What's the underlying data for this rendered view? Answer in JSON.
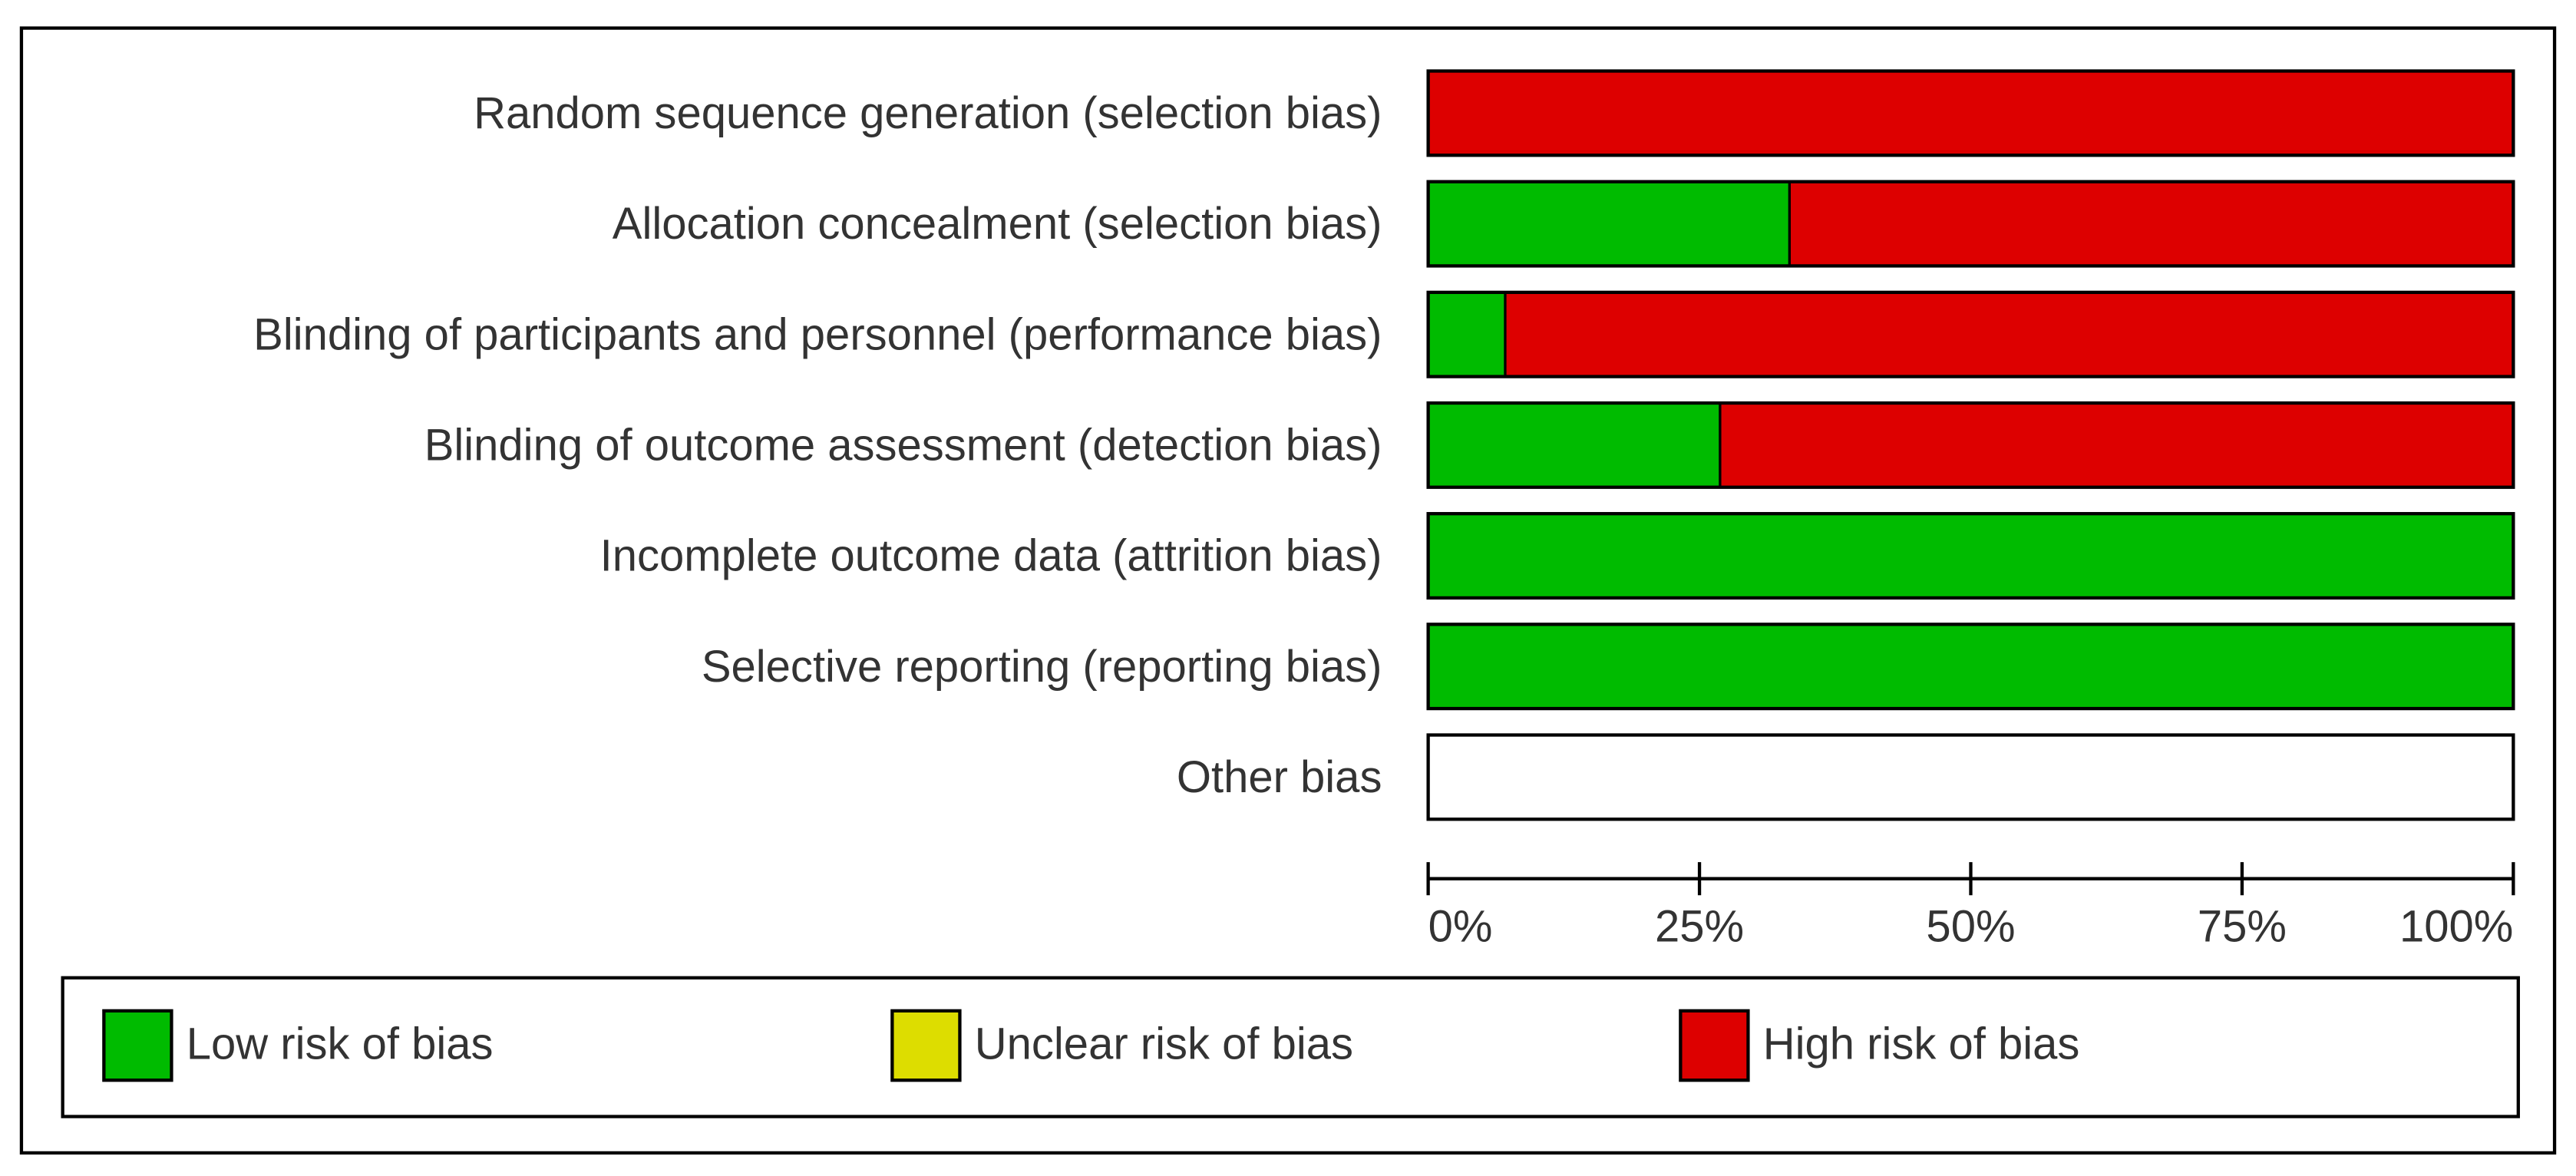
{
  "chart_data": {
    "type": "bar",
    "orientation": "horizontal",
    "stacked": true,
    "categories": [
      "Random sequence generation (selection bias)",
      "Allocation concealment (selection bias)",
      "Blinding of participants and personnel (performance bias)",
      "Blinding of outcome assessment (detection bias)",
      "Incomplete outcome data (attrition bias)",
      "Selective reporting (reporting bias)",
      "Other bias"
    ],
    "series": [
      {
        "name": "Low risk of bias",
        "color": "#00bb00",
        "values": [
          0,
          33.3,
          7.1,
          26.9,
          100,
          100,
          0
        ]
      },
      {
        "name": "Unclear risk of bias",
        "color": "#dddd00",
        "values": [
          0,
          0,
          0,
          0,
          0,
          0,
          0
        ]
      },
      {
        "name": "High risk of bias",
        "color": "#dd0000",
        "values": [
          100,
          66.7,
          92.9,
          73.1,
          0,
          0,
          0
        ]
      }
    ],
    "xlim": [
      0,
      100
    ],
    "xticks": [
      {
        "value": 0,
        "label": "0%"
      },
      {
        "value": 25,
        "label": "25%"
      },
      {
        "value": 50,
        "label": "50%"
      },
      {
        "value": 75,
        "label": "75%"
      },
      {
        "value": 100,
        "label": "100%"
      }
    ],
    "legend": "bottom"
  }
}
